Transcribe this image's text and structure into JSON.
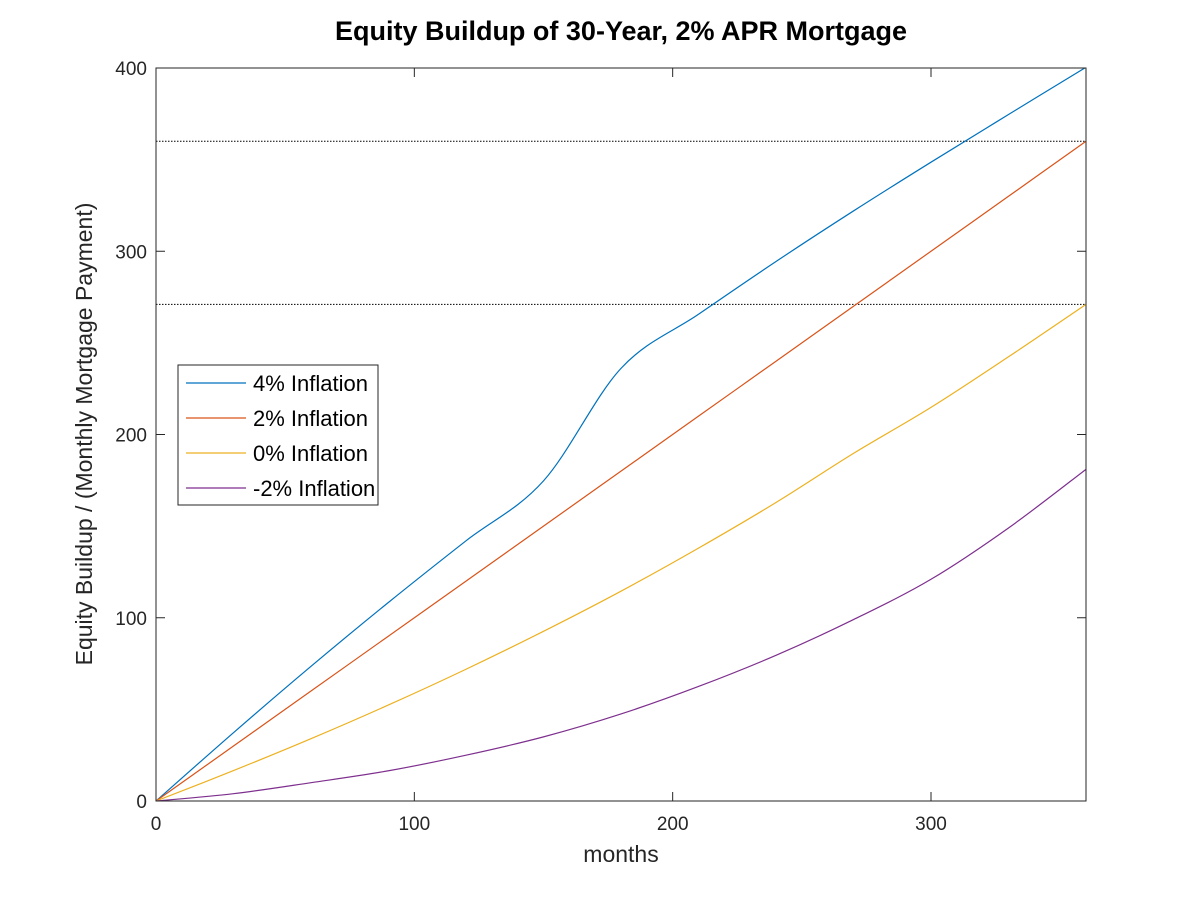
{
  "chart_data": {
    "type": "line",
    "title": "Equity Buildup of 30-Year, 2% APR Mortgage",
    "xlabel": "months",
    "ylabel": "Equity Buildup / (Monthly Mortgage Payment)",
    "xlim": [
      0,
      360
    ],
    "ylim": [
      0,
      400
    ],
    "xticks": [
      0,
      100,
      200,
      300
    ],
    "yticks": [
      0,
      100,
      200,
      300,
      400
    ],
    "grid": false,
    "legend_position": "middle-left",
    "reference_lines": [
      {
        "y": 360,
        "style": "dotted",
        "color": "#000000"
      },
      {
        "y": 271,
        "style": "dotted",
        "color": "#000000"
      }
    ],
    "x": [
      0,
      30,
      60,
      90,
      120,
      150,
      180,
      210,
      240,
      270,
      300,
      330,
      360
    ],
    "series": [
      {
        "name": "4% Inflation",
        "color": "#0072BD",
        "values": [
          0,
          37.3,
          73.5,
          108.4,
          142.0,
          174.7,
          236.1,
          265.6,
          294.4,
          322.0,
          348.6,
          374.6,
          400.4
        ]
      },
      {
        "name": "2% Inflation",
        "color": "#D95319",
        "values": [
          0,
          30,
          60,
          90,
          120,
          150,
          180,
          210,
          240,
          270,
          300,
          330,
          360
        ]
      },
      {
        "name": "0% Inflation",
        "color": "#EDB120",
        "values": [
          0,
          16.6,
          34.0,
          52.4,
          71.9,
          92.6,
          114.5,
          138.0,
          162.9,
          189.7,
          214.8,
          242.4,
          271.0
        ]
      },
      {
        "name": "-2% Inflation",
        "color": "#7E2F8E",
        "values": [
          0,
          4.0,
          10.0,
          16.5,
          25.0,
          35.0,
          47.5,
          62.5,
          79.5,
          99.0,
          121.0,
          149.0,
          181.0
        ]
      }
    ]
  }
}
